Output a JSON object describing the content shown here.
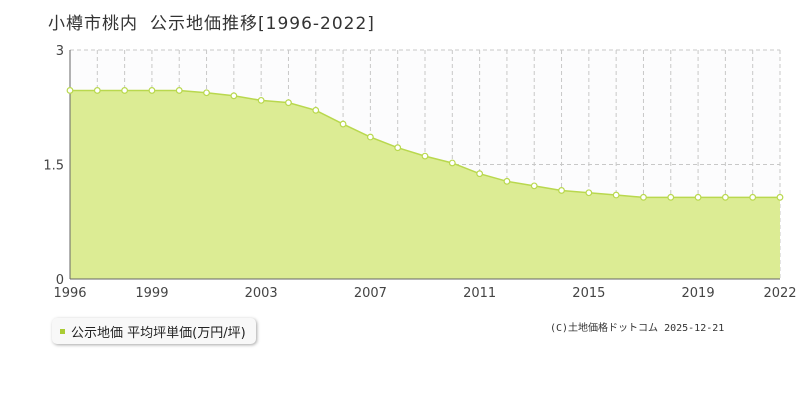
{
  "title": {
    "location": "小樽市桃内",
    "subject": "公示地価推移[1996-2022]"
  },
  "legend": {
    "label": "公示地価 平均坪単価(万円/坪)"
  },
  "copyright": "(C)土地価格ドットコム 2025-12-21",
  "colors": {
    "fill": "#dcec94",
    "line": "#b9d84e",
    "marker_fill": "#ffffff",
    "marker_stroke": "#b9d84e",
    "grid": "#c8c8c8",
    "axis": "#666666",
    "legend_swatch": "#aacc33"
  },
  "chart_data": {
    "type": "area",
    "title": "小樽市桃内 公示地価推移[1996-2022]",
    "xlabel": "",
    "ylabel": "",
    "ylim": [
      0,
      3
    ],
    "xlim": [
      1996,
      2022
    ],
    "grid": true,
    "legend_position": "bottom-left",
    "y_ticks": [
      {
        "value": 0,
        "label": "0"
      },
      {
        "value": 1.5,
        "label": "1.5"
      },
      {
        "value": 3,
        "label": "3"
      }
    ],
    "x_tick_labels": [
      {
        "value": 1996,
        "label": "1996"
      },
      {
        "value": 1999,
        "label": "1999"
      },
      {
        "value": 2003,
        "label": "2003"
      },
      {
        "value": 2007,
        "label": "2007"
      },
      {
        "value": 2011,
        "label": "2011"
      },
      {
        "value": 2015,
        "label": "2015"
      },
      {
        "value": 2019,
        "label": "2019"
      },
      {
        "value": 2022,
        "label": "2022"
      }
    ],
    "series": [
      {
        "name": "公示地価 平均坪単価(万円/坪)",
        "x": [
          1996,
          1997,
          1998,
          1999,
          2000,
          2001,
          2002,
          2003,
          2004,
          2005,
          2006,
          2007,
          2008,
          2009,
          2010,
          2011,
          2012,
          2013,
          2014,
          2015,
          2016,
          2017,
          2018,
          2019,
          2020,
          2021,
          2022
        ],
        "y": [
          2.47,
          2.47,
          2.47,
          2.47,
          2.47,
          2.44,
          2.4,
          2.34,
          2.31,
          2.21,
          2.03,
          1.86,
          1.72,
          1.61,
          1.52,
          1.38,
          1.28,
          1.22,
          1.16,
          1.13,
          1.1,
          1.07,
          1.07,
          1.07,
          1.07,
          1.07,
          1.07
        ]
      }
    ]
  }
}
